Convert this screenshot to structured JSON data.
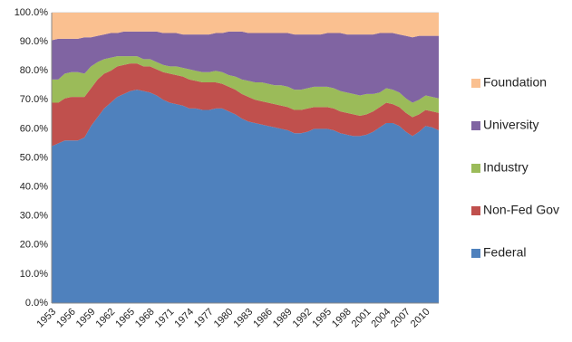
{
  "chart_data": {
    "type": "stacked-area",
    "categories": [
      "1953",
      null,
      null,
      "1956",
      null,
      null,
      "1959",
      null,
      null,
      "1962",
      null,
      null,
      "1965",
      null,
      null,
      "1968",
      null,
      null,
      "1971",
      null,
      null,
      "1974",
      null,
      null,
      "1977",
      null,
      null,
      "1980",
      null,
      null,
      "1983",
      null,
      null,
      "1986",
      null,
      null,
      "1989",
      null,
      null,
      "1992",
      null,
      null,
      "1995",
      null,
      null,
      "1998",
      null,
      null,
      "2001",
      null,
      null,
      "2004",
      null,
      null,
      "2007",
      null,
      null,
      "2010",
      null,
      null
    ],
    "series": [
      {
        "name": "Federal",
        "color": "#4f81bd",
        "values": [
          54,
          55,
          56,
          56,
          56,
          57,
          61,
          64,
          67,
          69,
          71,
          72,
          73,
          73.5,
          73,
          72.5,
          71.5,
          70,
          69,
          68.5,
          68,
          67,
          67,
          66.5,
          66.5,
          67,
          67,
          66,
          65,
          63.5,
          62.5,
          62,
          61.5,
          61,
          60.5,
          60,
          59.5,
          58.5,
          58.5,
          59,
          60,
          60,
          60,
          59.5,
          58.5,
          58,
          57.5,
          57.5,
          58,
          59,
          60.5,
          62,
          62,
          61,
          59,
          57.5,
          59,
          61,
          60.5,
          59.5
        ]
      },
      {
        "name": "Non-Fed Gov",
        "color": "#c0504d",
        "values": [
          15,
          14,
          14.5,
          15,
          15,
          14,
          13,
          13,
          12,
          11,
          10.5,
          10,
          9.5,
          9,
          8.5,
          9,
          9,
          9.5,
          10,
          10,
          10,
          10,
          9.5,
          9.5,
          9.5,
          9,
          8.5,
          8.5,
          8.5,
          8.5,
          8.5,
          8,
          8,
          8,
          8,
          8,
          8,
          8,
          8,
          8,
          7.5,
          7.5,
          7.5,
          7.5,
          7.5,
          7.5,
          7.5,
          7,
          7,
          7,
          7,
          7,
          6.5,
          6.5,
          6.5,
          6.5,
          6,
          5.5,
          5.5,
          6
        ]
      },
      {
        "name": "Industry",
        "color": "#9bbb59",
        "values": [
          8,
          8,
          8.5,
          8.5,
          8.5,
          8,
          7.5,
          6,
          5,
          4.5,
          3.5,
          3,
          2.5,
          2.5,
          2.5,
          2.5,
          2.5,
          2.5,
          2.5,
          3,
          3,
          3.5,
          3.5,
          3.5,
          3.5,
          4,
          4,
          4,
          4.5,
          5,
          5.5,
          6,
          6.5,
          6.5,
          6.5,
          7,
          7,
          7,
          7,
          7,
          7,
          7,
          7,
          7,
          7,
          7,
          7,
          7,
          7,
          6,
          5,
          5,
          5,
          5,
          5,
          5,
          5,
          5,
          5,
          5
        ]
      },
      {
        "name": "University",
        "color": "#8064a2",
        "values": [
          13.5,
          14,
          12,
          11.5,
          11.5,
          12.5,
          10,
          9,
          8.5,
          8.5,
          8,
          8.5,
          8.5,
          8.5,
          9.5,
          9.5,
          10.5,
          11,
          11.5,
          11.5,
          11.5,
          12,
          12.5,
          13,
          13,
          13,
          13.5,
          15,
          15.5,
          16.5,
          16.5,
          17,
          17,
          17.5,
          18,
          18,
          18.5,
          19,
          19,
          18.5,
          18,
          18,
          18.5,
          19,
          20,
          20,
          20.5,
          21,
          20.5,
          20.5,
          20.5,
          19,
          19.5,
          20,
          21.5,
          22.5,
          22,
          20.5,
          21,
          21.5
        ]
      },
      {
        "name": "Foundation",
        "color": "#fac090",
        "values": [
          9.5,
          9,
          9,
          9,
          9,
          8.5,
          8.5,
          8,
          7.5,
          7,
          7,
          6.5,
          6.5,
          6.5,
          6.5,
          6.5,
          6.5,
          7,
          7,
          7,
          7.5,
          7.5,
          7.5,
          7.5,
          7.5,
          7,
          7,
          6.5,
          6.5,
          6.5,
          7,
          7,
          7,
          7,
          7,
          7,
          7,
          7.5,
          7.5,
          7.5,
          7.5,
          7.5,
          7,
          7,
          7,
          7.5,
          7.5,
          7.5,
          7.5,
          7.5,
          7,
          7,
          7,
          7.5,
          8,
          8.5,
          8,
          8,
          8,
          8
        ]
      }
    ],
    "ylim": [
      0,
      100
    ],
    "yticks": [
      {
        "value": 0,
        "label": "0.0%"
      },
      {
        "value": 10,
        "label": "10.0%"
      },
      {
        "value": 20,
        "label": "20.0%"
      },
      {
        "value": 30,
        "label": "30.0%"
      },
      {
        "value": 40,
        "label": "40.0%"
      },
      {
        "value": 50,
        "label": "50.0%"
      },
      {
        "value": 60,
        "label": "60.0%"
      },
      {
        "value": 70,
        "label": "70.0%"
      },
      {
        "value": 80,
        "label": "80.0%"
      },
      {
        "value": 90,
        "label": "90.0%"
      },
      {
        "value": 100,
        "label": "100.0%"
      }
    ],
    "grid": true,
    "legend": "right"
  }
}
